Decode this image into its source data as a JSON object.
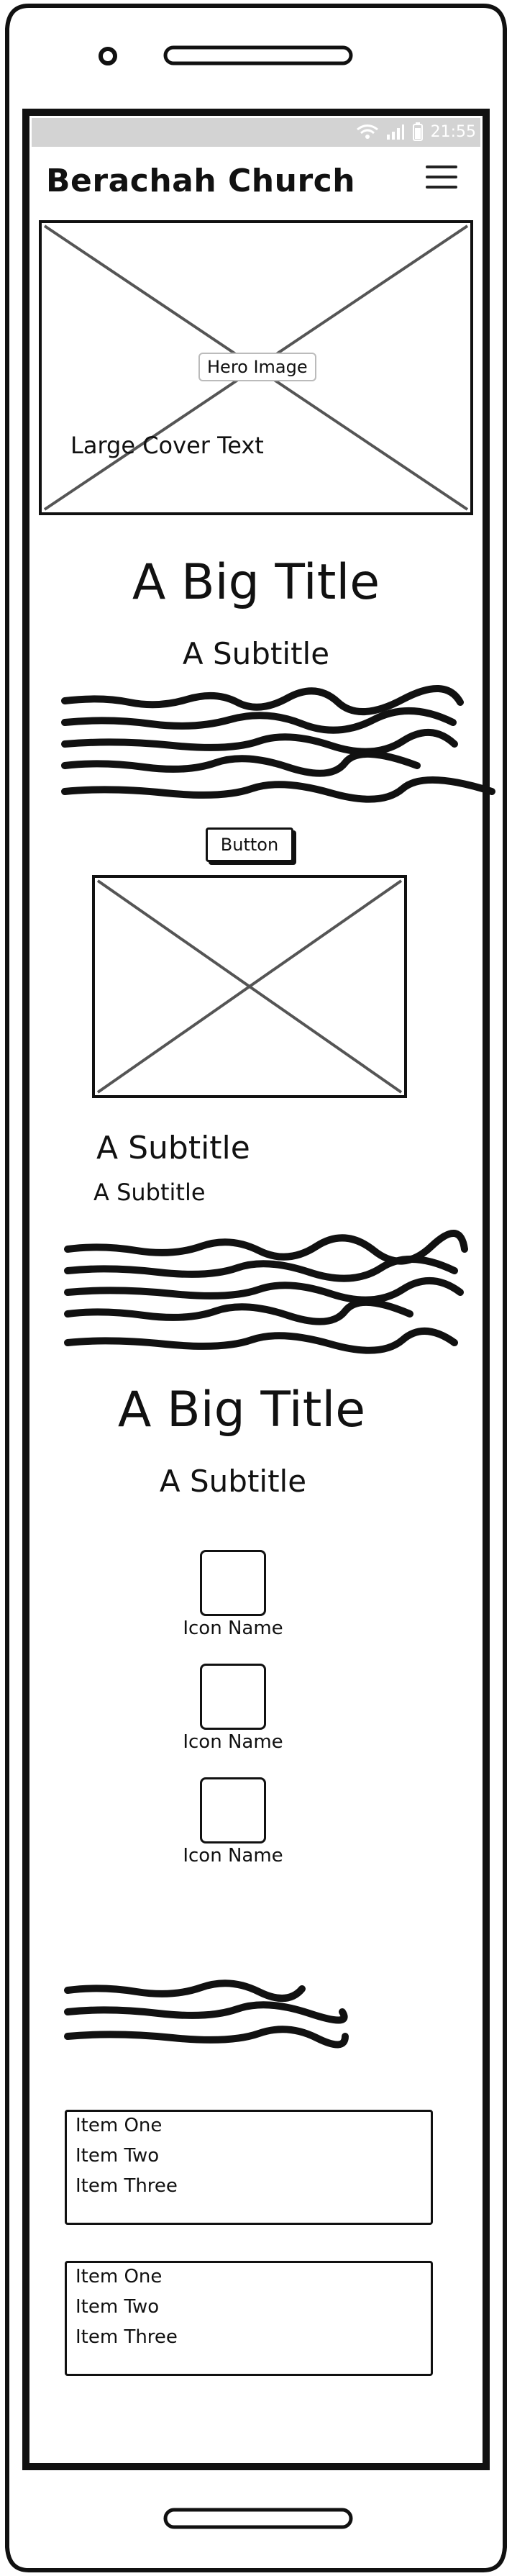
{
  "status_bar": {
    "time": "21:55",
    "icons": [
      "wifi-icon",
      "signal-icon",
      "battery-icon"
    ]
  },
  "header": {
    "title": "Berachah Church",
    "menu_icon": "hamburger-menu-icon"
  },
  "hero": {
    "image_label": "Hero Image",
    "cover_text": "Large Cover Text"
  },
  "section1": {
    "title": "A Big Title",
    "subtitle": "A Subtitle",
    "button_label": "Button"
  },
  "section2": {
    "subtitle_large": "A Subtitle",
    "subtitle_small": "A Subtitle"
  },
  "section3": {
    "title": "A Big Title",
    "subtitle": "A Subtitle",
    "icons": [
      {
        "name": "Icon Name"
      },
      {
        "name": "Icon Name"
      },
      {
        "name": "Icon Name"
      }
    ]
  },
  "lists": [
    {
      "items": [
        "Item One",
        "Item Two",
        "Item Three"
      ]
    },
    {
      "items": [
        "Item One",
        "Item Two",
        "Item Three"
      ]
    }
  ]
}
